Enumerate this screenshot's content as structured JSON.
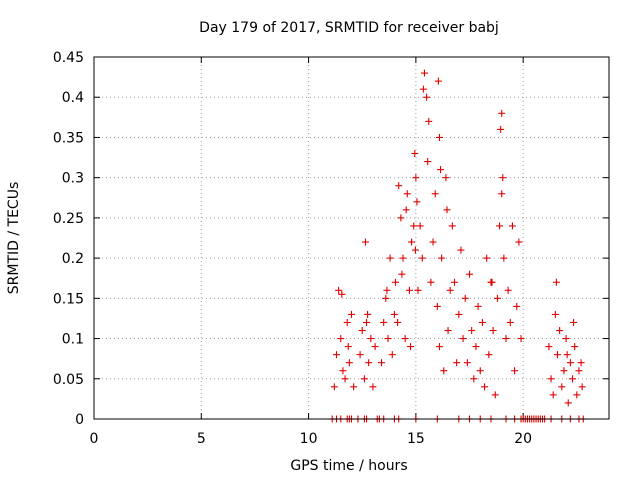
{
  "chart_data": {
    "type": "scatter",
    "title": "Day 179 of 2017, SRMTID for receiver babj",
    "xlabel": "GPS time / hours",
    "ylabel": "SRMTID / TECUs",
    "xlim": [
      0,
      24
    ],
    "ylim": [
      0,
      0.45
    ],
    "xticks": [
      "0",
      "5",
      "10",
      "15",
      "20"
    ],
    "yticks": [
      "0",
      "0.05",
      "0.1",
      "0.15",
      "0.2",
      "0.25",
      "0.3",
      "0.35",
      "0.4",
      "0.45"
    ],
    "grid": true,
    "marker": "+",
    "color": "#e00000",
    "series": [
      {
        "name": "SRMTID",
        "x": [
          11.2,
          11.3,
          11.4,
          11.5,
          11.6,
          11.7,
          11.8,
          11.9,
          12.0,
          12.1,
          11.55,
          11.85,
          12.4,
          12.5,
          12.6,
          12.7,
          12.8,
          12.9,
          13.0,
          13.1,
          12.65,
          12.75,
          13.4,
          13.5,
          13.6,
          13.7,
          13.8,
          13.9,
          14.0,
          14.05,
          13.65,
          14.2,
          14.3,
          14.4,
          14.5,
          14.6,
          14.7,
          14.8,
          14.9,
          14.15,
          14.35,
          14.55,
          14.75,
          14.95,
          15.0,
          15.05,
          14.98,
          15.1,
          15.2,
          15.3,
          15.4,
          15.5,
          15.6,
          15.7,
          15.8,
          15.9,
          16.0,
          16.1,
          16.2,
          16.3,
          16.4,
          16.5,
          16.6,
          16.7,
          16.8,
          16.9,
          17.0,
          17.1,
          17.2,
          17.3,
          17.4,
          17.5,
          17.6,
          17.7,
          17.8,
          17.9,
          18.0,
          18.1,
          18.2,
          18.3,
          18.4,
          18.5,
          18.6,
          18.7,
          18.8,
          18.9,
          19.0,
          19.1,
          19.2,
          19.3,
          19.4,
          19.5,
          19.6,
          19.7,
          19.8,
          19.9,
          16.05,
          16.1,
          16.15,
          19.0,
          19.05,
          15.35,
          15.55,
          16.45,
          18.55,
          18.95,
          21.2,
          21.3,
          21.4,
          21.5,
          21.6,
          21.7,
          21.8,
          21.9,
          22.0,
          22.1,
          22.2,
          22.3,
          22.4,
          22.5,
          22.6,
          21.55,
          22.05,
          22.35,
          22.7,
          22.75,
          11.1,
          11.3,
          11.5,
          11.8,
          11.9,
          12.0,
          12.3,
          12.6,
          12.7,
          13.2,
          13.3,
          13.5,
          14.0,
          14.2,
          15.0,
          16.0,
          17.0,
          17.5,
          18.0,
          18.5,
          19.2,
          19.6,
          19.9,
          20.0,
          20.1,
          20.2,
          20.3,
          20.4,
          20.5,
          20.6,
          20.7,
          20.8,
          20.9,
          21.0,
          21.3,
          21.8,
          22.2,
          22.6,
          22.8
        ],
        "y": [
          0.04,
          0.08,
          0.16,
          0.1,
          0.06,
          0.05,
          0.12,
          0.07,
          0.13,
          0.04,
          0.155,
          0.09,
          0.08,
          0.11,
          0.05,
          0.12,
          0.07,
          0.1,
          0.04,
          0.09,
          0.22,
          0.13,
          0.07,
          0.12,
          0.15,
          0.1,
          0.2,
          0.08,
          0.13,
          0.17,
          0.16,
          0.29,
          0.25,
          0.2,
          0.1,
          0.28,
          0.16,
          0.22,
          0.24,
          0.12,
          0.18,
          0.26,
          0.09,
          0.33,
          0.3,
          0.27,
          0.21,
          0.16,
          0.24,
          0.2,
          0.43,
          0.4,
          0.37,
          0.17,
          0.22,
          0.28,
          0.14,
          0.09,
          0.2,
          0.06,
          0.3,
          0.11,
          0.16,
          0.24,
          0.17,
          0.07,
          0.13,
          0.21,
          0.1,
          0.15,
          0.07,
          0.18,
          0.11,
          0.05,
          0.09,
          0.14,
          0.06,
          0.12,
          0.04,
          0.2,
          0.08,
          0.17,
          0.11,
          0.03,
          0.15,
          0.24,
          0.28,
          0.2,
          0.1,
          0.16,
          0.12,
          0.24,
          0.06,
          0.14,
          0.22,
          0.1,
          0.42,
          0.35,
          0.31,
          0.38,
          0.3,
          0.41,
          0.32,
          0.26,
          0.17,
          0.36,
          0.09,
          0.05,
          0.03,
          0.13,
          0.08,
          0.11,
          0.04,
          0.06,
          0.1,
          0.02,
          0.07,
          0.05,
          0.09,
          0.03,
          0.06,
          0.17,
          0.08,
          0.12,
          0.07,
          0.04,
          0.0,
          0.0,
          0.0,
          0.0,
          0.0,
          0.0,
          0.0,
          0.0,
          0.0,
          0.0,
          0.0,
          0.0,
          0.0,
          0.0,
          0.0,
          0.0,
          0.0,
          0.0,
          0.0,
          0.0,
          0.0,
          0.0,
          0.0,
          0.0,
          0.0,
          0.0,
          0.0,
          0.0,
          0.0,
          0.0,
          0.0,
          0.0,
          0.0,
          0.0,
          0.0,
          0.0,
          0.0,
          0.0,
          0.0
        ]
      }
    ]
  }
}
